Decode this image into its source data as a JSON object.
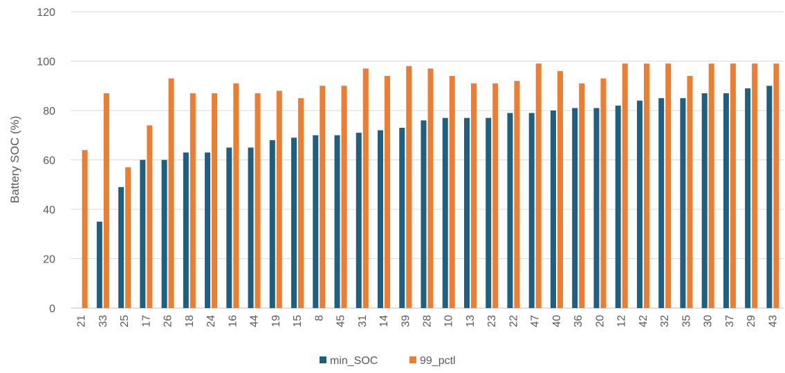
{
  "chart_data": {
    "type": "bar",
    "title": "",
    "xlabel": "",
    "ylabel": "Battery SOC (%)",
    "ylim": [
      0,
      120
    ],
    "yticks": [
      0,
      20,
      40,
      60,
      80,
      100,
      120
    ],
    "grid": true,
    "legend": "bottom-center",
    "categories": [
      "21",
      "33",
      "25",
      "17",
      "26",
      "18",
      "24",
      "16",
      "44",
      "19",
      "15",
      "8",
      "45",
      "31",
      "14",
      "39",
      "28",
      "10",
      "13",
      "23",
      "22",
      "47",
      "40",
      "36",
      "20",
      "12",
      "42",
      "32",
      "35",
      "30",
      "37",
      "29",
      "43"
    ],
    "series": [
      {
        "name": "min_SOC",
        "color": "#1f5f7f",
        "values": [
          0,
          35,
          49,
          60,
          60,
          63,
          63,
          65,
          65,
          68,
          69,
          70,
          70,
          71,
          72,
          73,
          76,
          77,
          77,
          77,
          79,
          79,
          80,
          81,
          81,
          82,
          84,
          85,
          85,
          87,
          87,
          89,
          90
        ]
      },
      {
        "name": "99_pctl",
        "color": "#ed7d31",
        "values": [
          64,
          87,
          57,
          74,
          93,
          87,
          87,
          91,
          87,
          88,
          85,
          90,
          90,
          97,
          94,
          98,
          97,
          94,
          91,
          91,
          92,
          99,
          96,
          91,
          93,
          99,
          99,
          99,
          94,
          99,
          99,
          99,
          99
        ]
      }
    ]
  }
}
